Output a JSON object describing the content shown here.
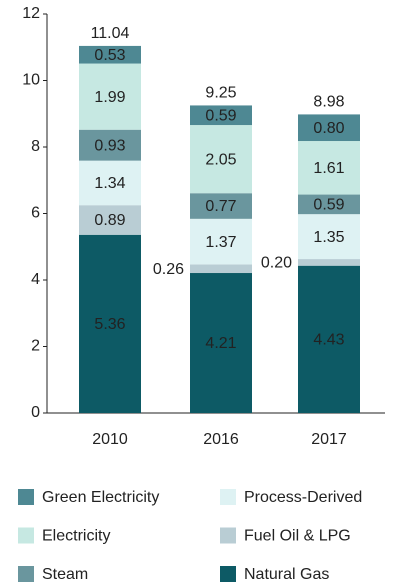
{
  "chart_data": {
    "type": "stacked_bar",
    "categories": [
      "2010",
      "2016",
      "2017"
    ],
    "series": [
      {
        "name": "Natural Gas",
        "color": "#0d5a65",
        "values": [
          5.36,
          4.21,
          4.43
        ],
        "value_labels": [
          "5.36",
          "4.21",
          "4.43"
        ]
      },
      {
        "name": "Fuel Oil & LPG",
        "color": "#b9cdd4",
        "values": [
          0.89,
          0.26,
          0.2
        ],
        "value_labels": [
          "0.89",
          "0.26",
          "0.20"
        ]
      },
      {
        "name": "Process-Derived",
        "color": "#def2f3",
        "values": [
          1.34,
          1.37,
          1.35
        ],
        "value_labels": [
          "1.34",
          "1.37",
          "1.35"
        ]
      },
      {
        "name": "Steam",
        "color": "#6a969e",
        "values": [
          0.93,
          0.77,
          0.59
        ],
        "value_labels": [
          "0.93",
          "0.77",
          "0.59"
        ]
      },
      {
        "name": "Electricity",
        "color": "#c6e8e2",
        "values": [
          1.99,
          2.05,
          1.61
        ],
        "value_labels": [
          "1.99",
          "2.05",
          "1.61"
        ]
      },
      {
        "name": "Green Electricity",
        "color": "#4e8893",
        "values": [
          0.53,
          0.59,
          0.8
        ],
        "value_labels": [
          "0.53",
          "0.59",
          "0.80"
        ]
      }
    ],
    "totals": [
      11.04,
      9.25,
      8.98
    ],
    "ylim": [
      0,
      12
    ],
    "yticks": [
      0,
      2,
      4,
      6,
      8,
      10,
      12
    ],
    "legend_order": [
      5,
      2,
      4,
      1,
      3,
      0
    ]
  }
}
